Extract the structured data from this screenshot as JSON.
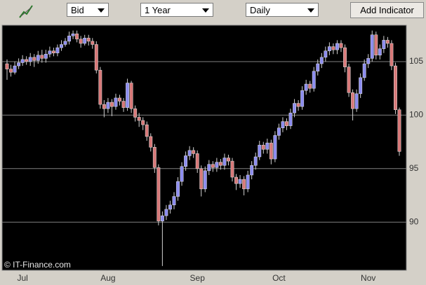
{
  "toolbar": {
    "price": "Bid",
    "range": "1 Year",
    "interval": "Daily",
    "button": "Add Indicator"
  },
  "chart_data": {
    "type": "candlestick",
    "annotation": "© IT-Finance.com",
    "categories": [
      null,
      null,
      null,
      null,
      "Jul",
      null,
      null,
      null,
      null,
      null,
      null,
      null,
      null,
      null,
      null,
      null,
      null,
      null,
      null,
      null,
      null,
      null,
      null,
      null,
      null,
      null,
      "Aug",
      null,
      null,
      null,
      null,
      null,
      null,
      null,
      null,
      null,
      null,
      null,
      null,
      null,
      null,
      null,
      null,
      null,
      null,
      null,
      null,
      null,
      null,
      "Sep",
      null,
      null,
      null,
      null,
      null,
      null,
      null,
      null,
      null,
      null,
      null,
      null,
      null,
      null,
      null,
      null,
      null,
      null,
      null,
      null,
      "Oct",
      null,
      null,
      null,
      null,
      null,
      null,
      null,
      null,
      null,
      null,
      null,
      null,
      null,
      null,
      null,
      null,
      null,
      null,
      null,
      null,
      null,
      null,
      "Nov",
      null,
      null,
      null,
      null,
      null,
      null,
      null,
      null
    ],
    "open": [
      104.8,
      104.3,
      104.0,
      104.6,
      104.9,
      105.2,
      105.0,
      105.4,
      105.1,
      105.6,
      105.3,
      105.7,
      106.0,
      105.8,
      106.3,
      106.6,
      106.9,
      107.4,
      107.6,
      107.1,
      106.7,
      107.2,
      106.9,
      106.6,
      104.2,
      101.0,
      100.6,
      101.2,
      100.8,
      101.6,
      101.3,
      100.7,
      103.0,
      100.6,
      99.8,
      99.5,
      99.1,
      98.0,
      97.0,
      95.1,
      90.1,
      90.6,
      91.2,
      91.6,
      92.4,
      93.8,
      95.2,
      96.2,
      96.7,
      96.4,
      95.0,
      93.1,
      94.8,
      95.4,
      95.1,
      95.6,
      95.3,
      96.0,
      95.7,
      94.2,
      93.6,
      94.0,
      93.1,
      94.4,
      95.3,
      96.1,
      97.2,
      96.8,
      97.4,
      95.9,
      98.1,
      98.8,
      99.4,
      99.0,
      100.2,
      101.1,
      100.8,
      102.3,
      102.9,
      102.5,
      104.1,
      104.8,
      105.4,
      106.0,
      106.4,
      106.1,
      106.7,
      106.3,
      104.5,
      102.1,
      100.6,
      102.0,
      103.5,
      104.8,
      105.3,
      107.5,
      105.6,
      106.2,
      107.0,
      106.7,
      104.6,
      100.5
    ],
    "high": [
      105.2,
      104.7,
      105.0,
      105.3,
      105.6,
      105.5,
      105.8,
      105.7,
      106.0,
      106.1,
      106.1,
      106.4,
      106.3,
      106.6,
      107.0,
      107.2,
      107.8,
      107.9,
      107.9,
      107.4,
      107.5,
      107.5,
      107.2,
      106.9,
      104.5,
      101.4,
      101.6,
      101.5,
      102.0,
      101.9,
      101.6,
      103.4,
      103.2,
      100.9,
      100.2,
      99.8,
      99.4,
      98.3,
      97.3,
      95.4,
      91.0,
      91.6,
      92.0,
      92.8,
      94.2,
      95.6,
      96.6,
      97.1,
      97.0,
      96.7,
      95.3,
      95.2,
      95.8,
      95.7,
      96.0,
      95.9,
      96.4,
      96.3,
      96.0,
      94.5,
      94.4,
      94.3,
      94.8,
      95.7,
      96.5,
      97.6,
      97.5,
      97.8,
      97.7,
      98.5,
      99.2,
      99.8,
      99.7,
      100.6,
      101.5,
      101.4,
      102.7,
      103.3,
      103.2,
      104.5,
      105.2,
      105.8,
      106.4,
      106.8,
      106.7,
      107.0,
      107.0,
      106.6,
      104.8,
      102.4,
      102.4,
      103.9,
      105.2,
      105.7,
      107.9,
      107.8,
      106.6,
      107.4,
      107.3,
      107.0,
      104.9,
      100.7
    ],
    "low": [
      103.3,
      103.6,
      103.8,
      104.3,
      104.6,
      104.7,
      104.6,
      104.5,
      104.8,
      104.9,
      104.9,
      105.4,
      105.5,
      105.5,
      106.0,
      106.4,
      106.6,
      107.1,
      106.8,
      106.3,
      106.5,
      106.5,
      106.2,
      103.9,
      100.6,
      99.8,
      100.2,
      99.9,
      100.5,
      100.9,
      100.3,
      100.4,
      100.2,
      99.4,
      98.9,
      98.6,
      97.6,
      96.6,
      94.6,
      89.7,
      85.9,
      90.2,
      90.8,
      91.2,
      92.0,
      93.4,
      94.8,
      95.8,
      96.0,
      94.6,
      92.4,
      92.8,
      94.4,
      94.7,
      94.7,
      94.9,
      94.9,
      95.3,
      93.8,
      93.0,
      93.2,
      92.5,
      92.8,
      94.0,
      94.9,
      95.8,
      96.4,
      96.4,
      95.4,
      95.6,
      97.7,
      98.4,
      98.6,
      98.7,
      99.8,
      100.4,
      100.5,
      101.9,
      102.1,
      102.2,
      103.7,
      104.4,
      105.0,
      105.6,
      105.7,
      105.7,
      105.9,
      104.0,
      101.7,
      99.5,
      100.3,
      101.6,
      103.2,
      104.4,
      105.0,
      105.2,
      105.2,
      105.8,
      106.3,
      104.2,
      100.1,
      96.2
    ],
    "close": [
      104.3,
      104.0,
      104.6,
      104.9,
      105.2,
      105.0,
      105.4,
      105.1,
      105.6,
      105.3,
      105.7,
      106.0,
      105.8,
      106.3,
      106.6,
      106.9,
      107.4,
      107.6,
      107.1,
      106.7,
      107.2,
      106.9,
      106.6,
      104.2,
      101.0,
      100.6,
      101.2,
      100.8,
      101.6,
      101.3,
      100.7,
      103.0,
      100.6,
      99.8,
      99.5,
      99.1,
      98.0,
      97.0,
      95.1,
      90.1,
      90.6,
      91.2,
      91.6,
      92.4,
      93.8,
      95.2,
      96.2,
      96.7,
      96.4,
      95.0,
      93.1,
      94.8,
      95.4,
      95.1,
      95.6,
      95.3,
      96.0,
      95.7,
      94.2,
      93.6,
      94.0,
      93.1,
      94.4,
      95.3,
      96.1,
      97.2,
      96.8,
      97.4,
      95.9,
      98.1,
      98.8,
      99.4,
      99.0,
      100.2,
      101.1,
      100.8,
      102.3,
      102.9,
      102.5,
      104.1,
      104.8,
      105.4,
      106.0,
      106.4,
      106.1,
      106.7,
      106.3,
      104.5,
      102.1,
      100.6,
      102.0,
      103.5,
      104.8,
      105.3,
      107.5,
      105.6,
      106.2,
      107.0,
      106.7,
      104.6,
      100.5,
      96.6
    ],
    "up_color": "#8c8cf0",
    "down_color": "#d87878",
    "ylim": [
      85.5,
      108.4
    ],
    "yticks": [
      90,
      95,
      100,
      105
    ],
    "grid": true
  }
}
